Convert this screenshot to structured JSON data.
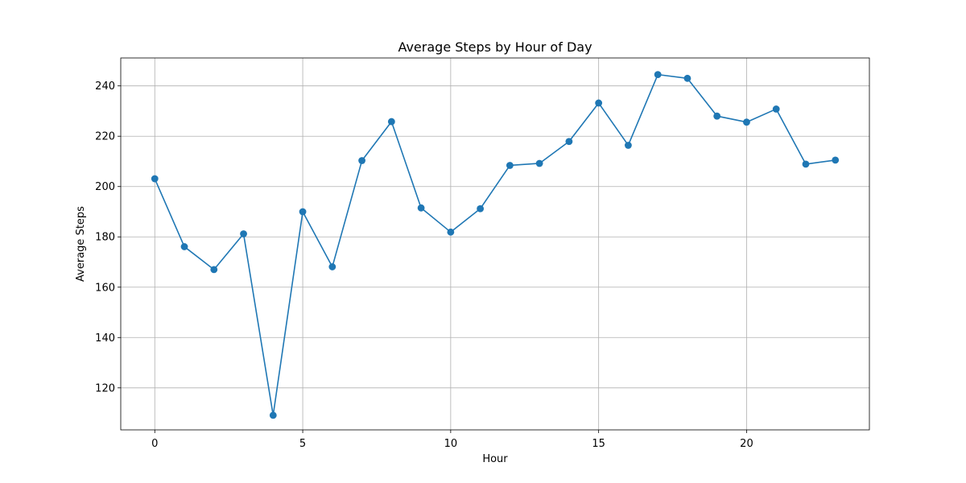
{
  "chart_data": {
    "type": "line",
    "title": "Average Steps by Hour of Day",
    "xlabel": "Hour",
    "ylabel": "Average Steps",
    "x": [
      0,
      1,
      2,
      3,
      4,
      5,
      6,
      7,
      8,
      9,
      10,
      11,
      12,
      13,
      14,
      15,
      16,
      17,
      18,
      19,
      20,
      21,
      22,
      23
    ],
    "series": [
      {
        "values": [
          203.1,
          176.1,
          167.0,
          181.2,
          109.1,
          190.0,
          168.1,
          210.3,
          225.8,
          191.5,
          181.9,
          191.2,
          208.4,
          209.2,
          217.9,
          233.2,
          216.4,
          244.5,
          243.0,
          228.0,
          225.6,
          230.8,
          208.9,
          210.5
        ],
        "color": "#1f77b4",
        "marker": "circle"
      }
    ],
    "xlim": [
      -1.15,
      24.15
    ],
    "ylim": [
      103.3,
      251.1
    ],
    "xticks": [
      0,
      5,
      10,
      15,
      20
    ],
    "yticks": [
      120,
      140,
      160,
      180,
      200,
      220,
      240
    ],
    "grid": true
  }
}
